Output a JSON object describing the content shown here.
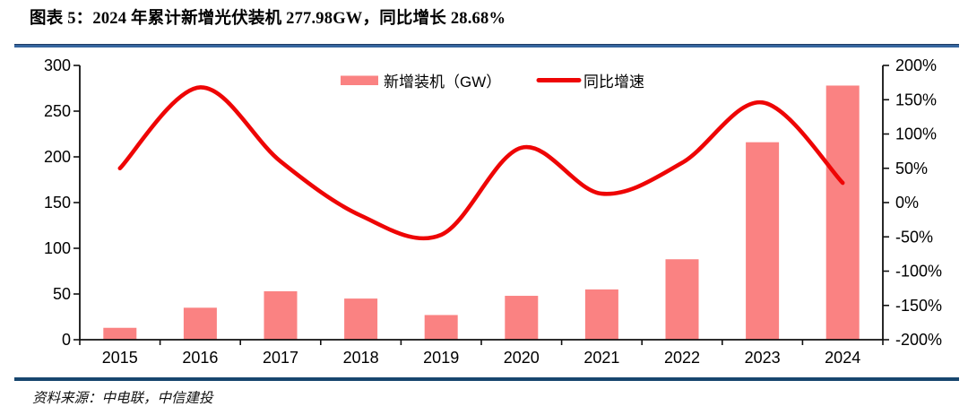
{
  "header": {
    "title": "图表 5：2024 年累计新增光伏装机 277.98GW，同比增长 28.68%"
  },
  "chart_data": {
    "type": "bar",
    "subtype": "bar+line dual-axis combo",
    "categories": [
      "2015",
      "2016",
      "2017",
      "2018",
      "2019",
      "2020",
      "2021",
      "2022",
      "2023",
      "2024"
    ],
    "series": [
      {
        "name": "新增装机（GW）",
        "type": "bar",
        "axis": "left",
        "values": [
          13,
          35,
          53,
          45,
          27,
          48,
          55,
          88,
          216,
          277.98
        ]
      },
      {
        "name": "同比增速",
        "type": "line",
        "axis": "right",
        "unit": "%",
        "values": [
          50,
          168,
          60,
          -19,
          -47,
          80,
          13,
          58,
          146,
          28.68
        ]
      }
    ],
    "left_axis": {
      "min": 0,
      "max": 300,
      "step": 50,
      "tick_labels": [
        "300",
        "250",
        "200",
        "150",
        "100",
        "50",
        "0"
      ]
    },
    "right_axis": {
      "min": -200,
      "max": 200,
      "step": 50,
      "tick_labels": [
        "200%",
        "150%",
        "100%",
        "50%",
        "0%",
        "-50%",
        "-100%",
        "-150%",
        "-200%"
      ]
    },
    "legend_position": "top-center",
    "grid": false,
    "line_smoothing": true
  },
  "colors": {
    "bar_fill": "#FA8282",
    "line_stroke": "#EE0505",
    "axis_stroke": "#111111",
    "top_rule": "#35659E",
    "bottom_rule": "#17466E",
    "title_text": "#000000"
  },
  "footer": {
    "source": "资料来源：中电联，中信建投"
  }
}
